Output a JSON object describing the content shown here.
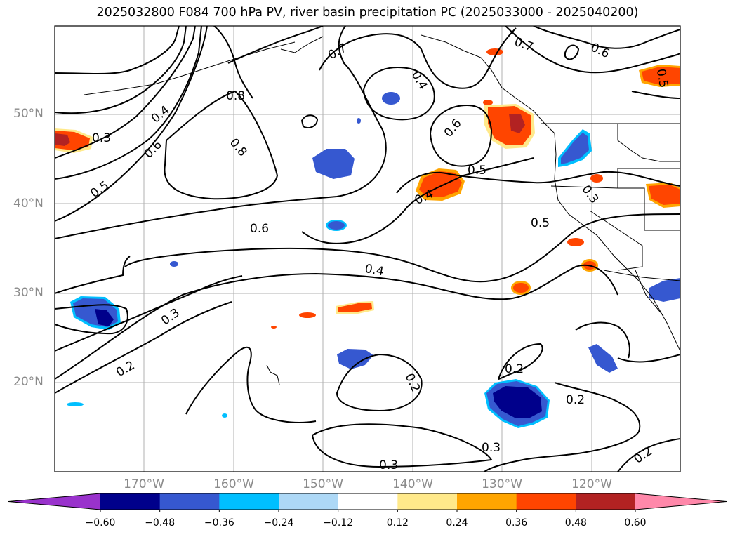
{
  "title": "2025032800 F084 700 hPa PV, river basin precipitation PC (2025033000 - 2025040200)",
  "lat_labels": [
    "50°N",
    "40°N",
    "30°N",
    "20°N"
  ],
  "lon_labels": [
    "170°W",
    "160°W",
    "150°W",
    "140°W",
    "130°W",
    "120°W"
  ],
  "contour_labels": [
    "0.3",
    "0.4",
    "0.6",
    "0.5",
    "0.8",
    "0.8",
    "0.7",
    "0.4",
    "0.6",
    "0.5",
    "0.4",
    "0.6",
    "0.5",
    "0.4",
    "0.3",
    "0.2",
    "0.2",
    "0.2",
    "0.2",
    "0.3",
    "0.3",
    "0.2",
    "0.7",
    "0.6",
    "0.5",
    "0.3"
  ],
  "colorbar": {
    "ticks": [
      "−0.60",
      "−0.48",
      "−0.36",
      "−0.24",
      "−0.12",
      "0.12",
      "0.24",
      "0.36",
      "0.48",
      "0.60"
    ],
    "colors": [
      "#9932cc",
      "#00008b",
      "#3658d0",
      "#00bfff",
      "#add8f6",
      "#ffffff",
      "#ffe98a",
      "#ffa500",
      "#ff4500",
      "#b22222",
      "#ff88aa"
    ]
  },
  "precip_colors": {
    "pos_light": "#ffe98a",
    "pos_mid": "#ffa500",
    "pos_high": "#ff4500",
    "pos_max": "#b22222",
    "neg_light": "#00bfff",
    "neg_mid": "#3658d0",
    "neg_max": "#00008b"
  }
}
